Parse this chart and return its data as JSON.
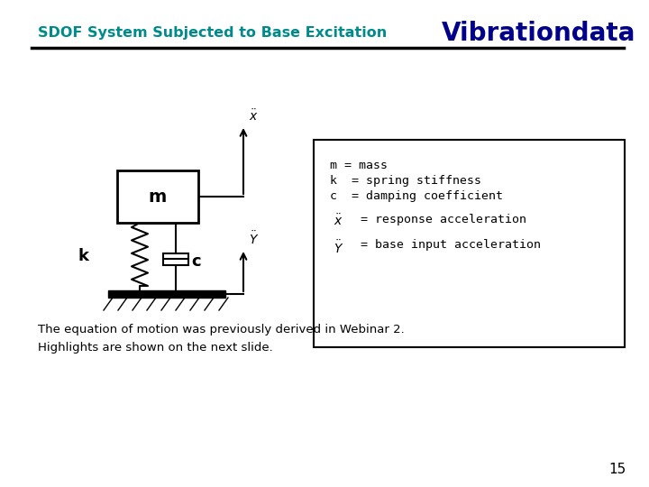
{
  "title_left": "SDOF System Subjected to Base Excitation",
  "title_right": "Vibrationdata",
  "title_left_color": "#008B8B",
  "title_right_color": "#00008B",
  "bg_color": "#ffffff",
  "bottom_text1": "The equation of motion was previously derived in Webinar 2.",
  "bottom_text2": "Highlights are shown on the next slide.",
  "page_number": "15"
}
